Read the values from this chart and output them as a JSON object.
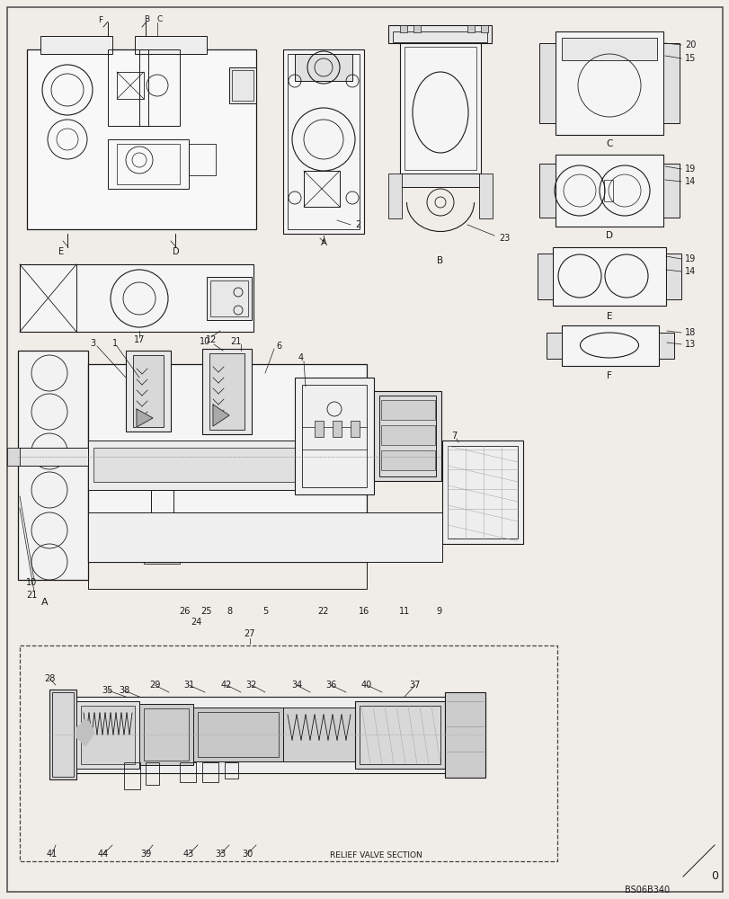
{
  "bg_color": "#f0ede8",
  "line_color": "#1a1a1a",
  "page_bg": "#f0ede8",
  "code_text": "BS06B340",
  "relief_valve_text": "RELIEF VALVE SECTION",
  "page_number": "0",
  "figure_width": 8.12,
  "figure_height": 10.0,
  "dpi": 100
}
